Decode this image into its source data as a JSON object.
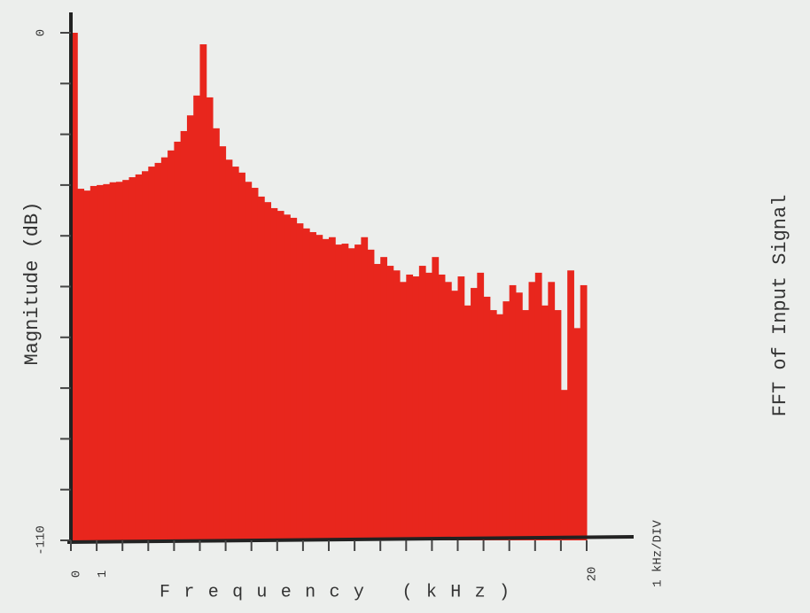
{
  "chart_data": {
    "type": "bar",
    "title": "FFT of Input Signal",
    "ylabel": "Magnitude (dB)",
    "xlabel": "Frequency (kHz)",
    "scale_note": "1 kHz/DIV",
    "color": "#e8261d",
    "xlim": [
      0,
      20
    ],
    "xticks": [
      0,
      1,
      20
    ],
    "xminor": [
      2,
      3,
      4,
      5,
      6,
      7,
      8,
      9,
      10,
      11,
      12,
      13,
      14,
      15,
      16,
      17,
      18,
      19
    ],
    "ylim": [
      -110,
      0
    ],
    "yticks": [
      0,
      -110
    ],
    "yminor": [
      -11,
      -22,
      -33,
      -44,
      -55,
      -66,
      -77,
      -88,
      -99
    ],
    "bin_width": 0.25,
    "values": [
      0,
      -33.8,
      -34.2,
      -33.2,
      -33,
      -32.8,
      -32.4,
      -32.3,
      -31.9,
      -31.3,
      -30.7,
      -30,
      -29,
      -28.2,
      -27,
      -25.5,
      -23.6,
      -21.3,
      -17.9,
      -13.6,
      -2.5,
      -14,
      -20.7,
      -24.6,
      -27.5,
      -29,
      -30.3,
      -32.3,
      -33.6,
      -35.5,
      -36.7,
      -38,
      -38.6,
      -39.4,
      -40.1,
      -41.3,
      -42.4,
      -43.2,
      -43.8,
      -44.7,
      -44.3,
      -45.9,
      -45.7,
      -46.7,
      -45.9,
      -44.3,
      -47,
      -50.1,
      -48.6,
      -50.5,
      -51.5,
      -54,
      -52.4,
      -52.8,
      -50.5,
      -52,
      -48.6,
      -52.4,
      -54,
      -55.9,
      -52.8,
      -59.1,
      -55.3,
      -52,
      -57.2,
      -60.1,
      -61,
      -58.2,
      -54.7,
      -56.3,
      -60.1,
      -54,
      -52,
      -59.1,
      -54,
      -60.1,
      -77.4,
      -51.5,
      -64,
      -54.7
    ]
  }
}
